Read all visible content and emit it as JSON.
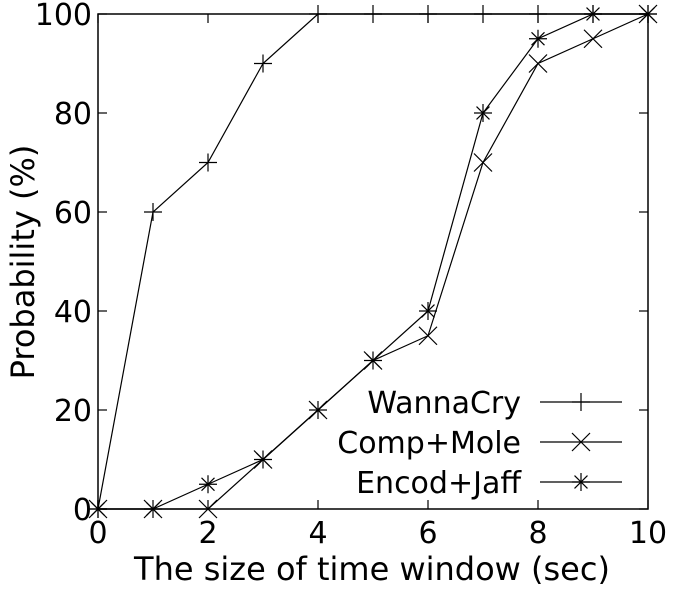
{
  "chart_data": {
    "type": "line",
    "xlabel": "The size of time window (sec)",
    "ylabel": "Probability (%)",
    "xlim": [
      0,
      10
    ],
    "ylim": [
      0,
      100
    ],
    "xticks": [
      0,
      2,
      4,
      6,
      8,
      10
    ],
    "yticks": [
      0,
      20,
      40,
      60,
      80,
      100
    ],
    "x": [
      0,
      1,
      2,
      3,
      4,
      5,
      6,
      7,
      8,
      9,
      10
    ],
    "grid": false,
    "legend_position": "bottom-right",
    "series": [
      {
        "name": "WannaCry",
        "marker": "plus",
        "values": [
          0,
          60,
          70,
          90,
          100,
          100,
          100,
          100,
          100,
          100,
          100
        ]
      },
      {
        "name": "Comp+Mole",
        "marker": "x",
        "values": [
          0,
          0,
          0,
          10,
          20,
          30,
          35,
          70,
          90,
          95,
          100
        ]
      },
      {
        "name": "Encod+Jaff",
        "marker": "asterisk",
        "values": [
          0,
          0,
          5,
          10,
          20,
          30,
          40,
          80,
          95,
          100,
          100
        ]
      }
    ],
    "colors": {
      "line": "#000000",
      "background": "#ffffff"
    }
  }
}
